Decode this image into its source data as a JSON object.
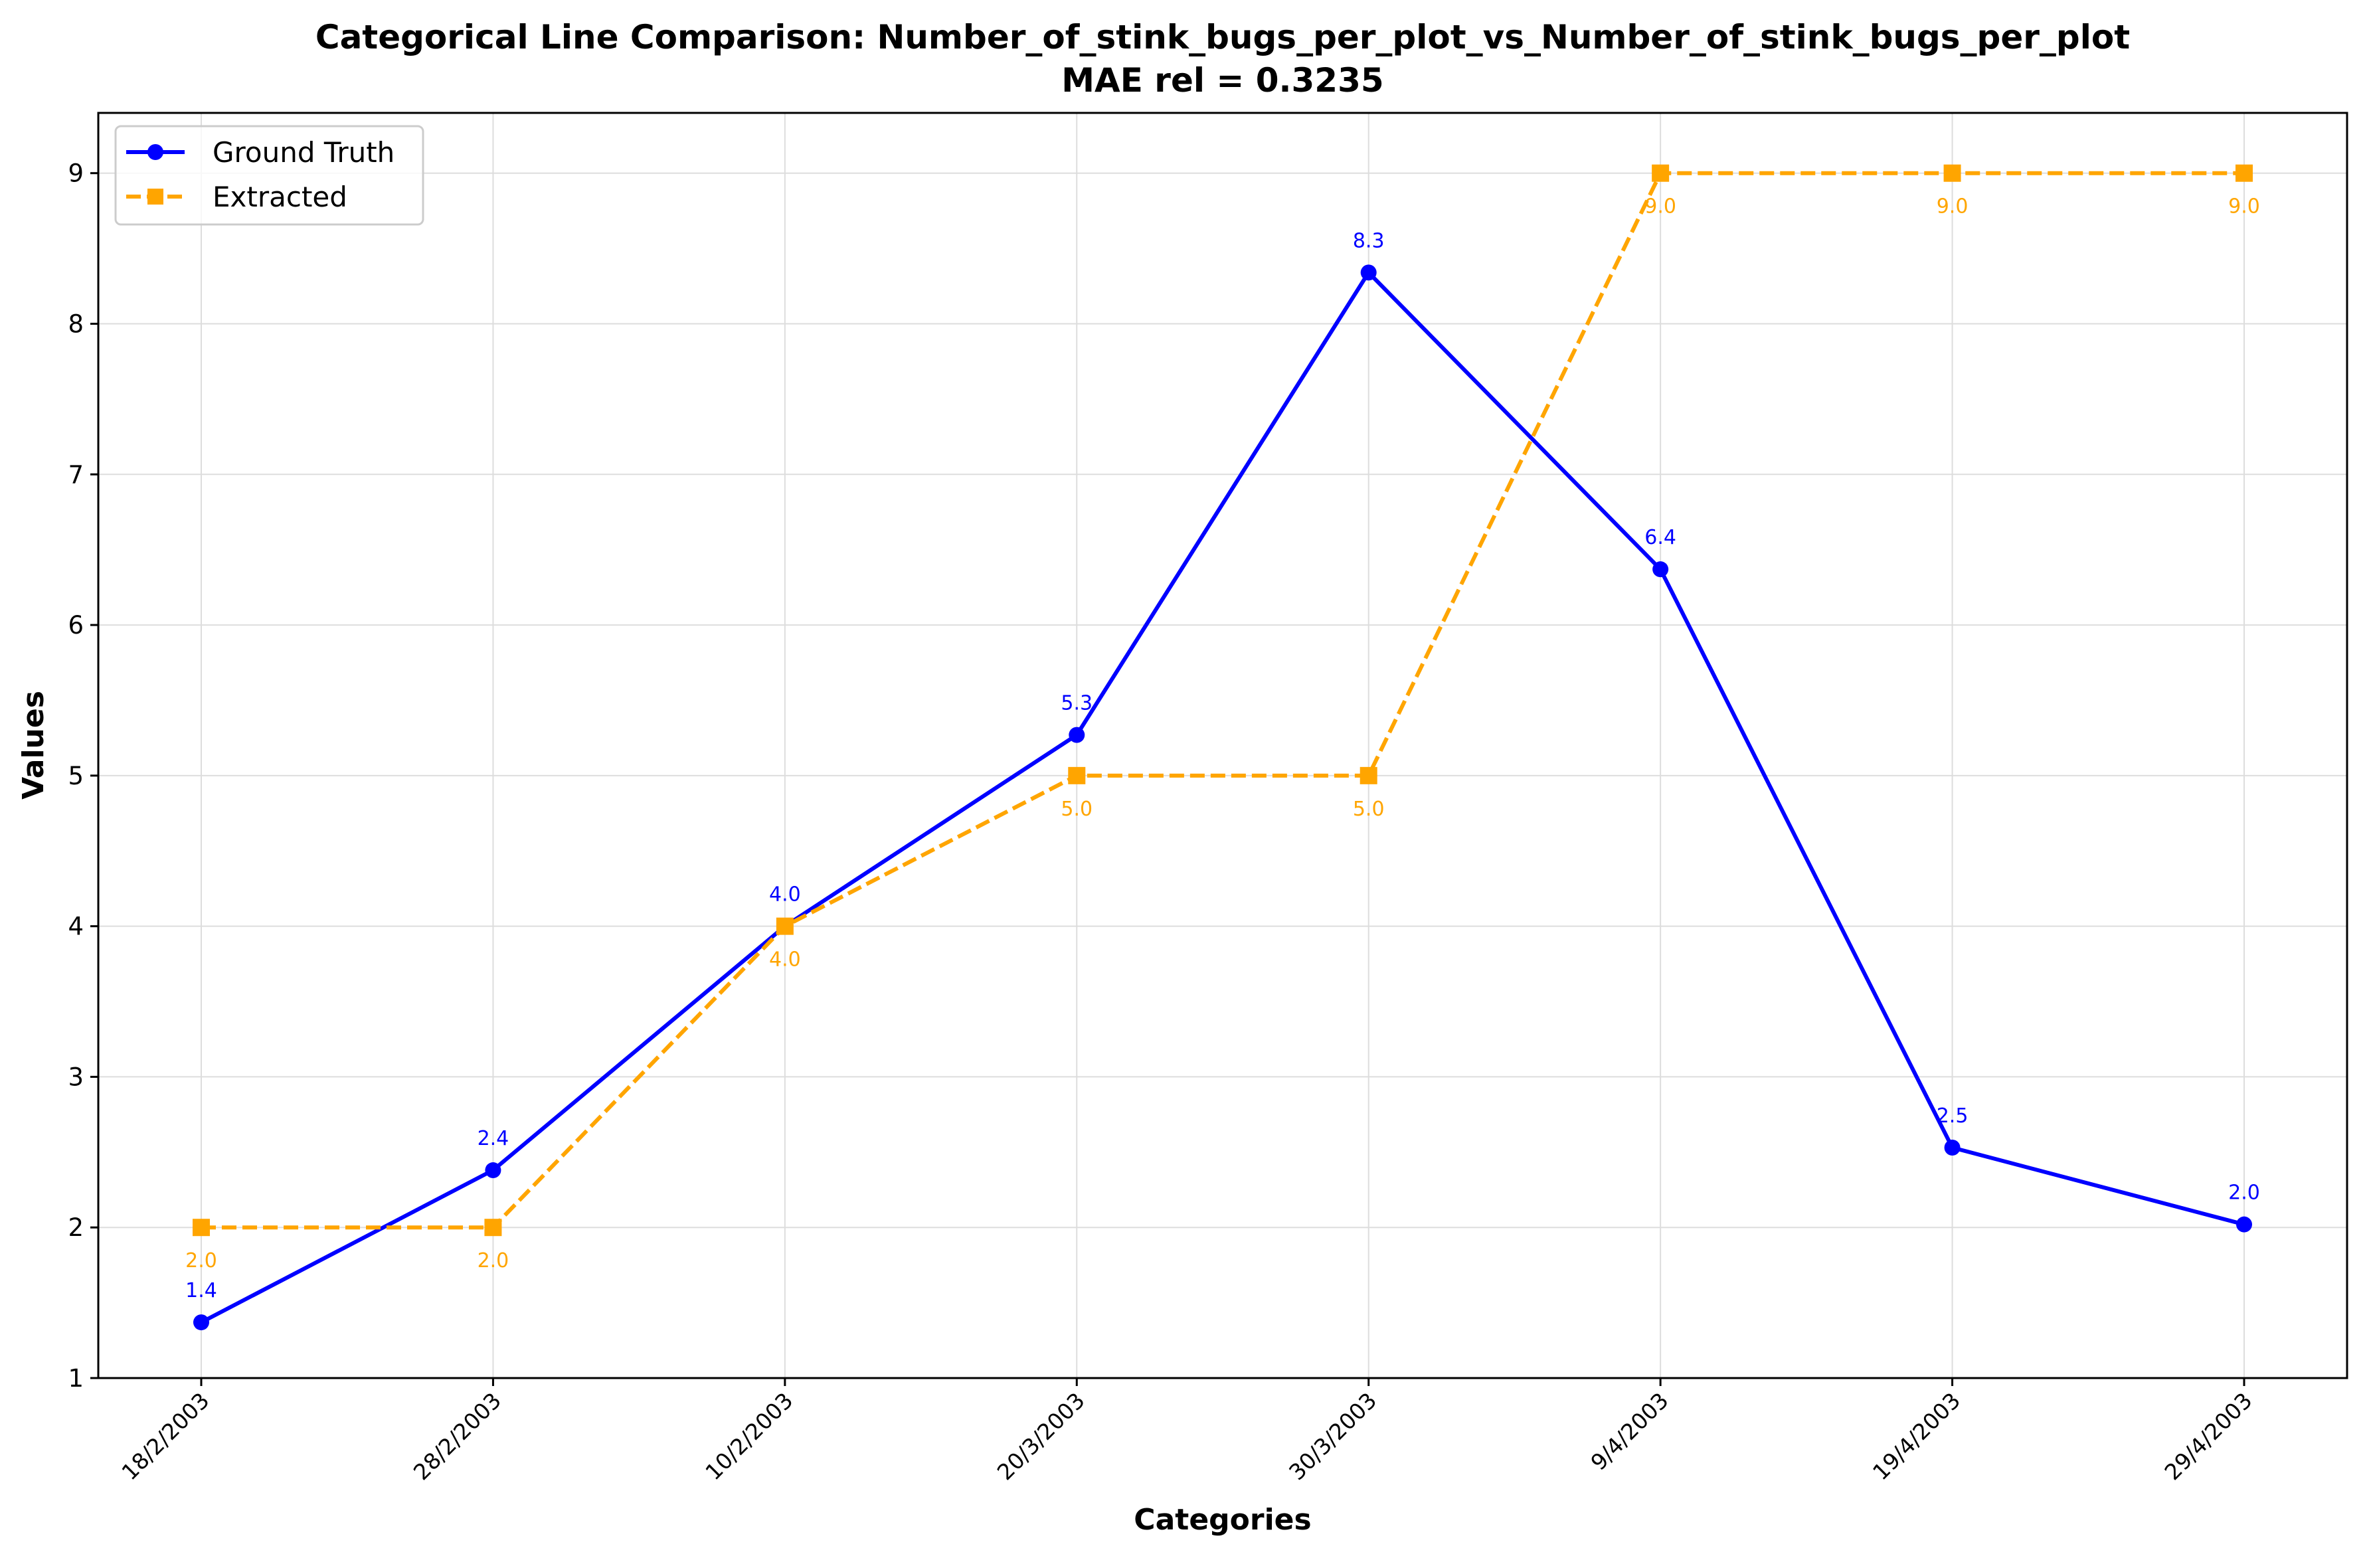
{
  "chart_data": {
    "type": "line",
    "title": "Categorical Line Comparison: Number_of_stink_bugs_per_plot_vs_Number_of_stink_bugs_per_plot",
    "subtitle": "MAE rel = 0.3235",
    "xlabel": "Categories",
    "ylabel": "Values",
    "categories": [
      "18/2/2003",
      "28/2/2003",
      "10/2/2003",
      "20/3/2003",
      "30/3/2003",
      "9/4/2003",
      "19/4/2003",
      "29/4/2003"
    ],
    "ylim": [
      1,
      9.4
    ],
    "yticks": [
      1,
      2,
      3,
      4,
      5,
      6,
      7,
      8,
      9
    ],
    "grid": true,
    "legend_position": "top-left",
    "series": [
      {
        "name": "Ground Truth",
        "values": [
          1.37,
          2.38,
          4.0,
          5.27,
          8.34,
          6.37,
          2.53,
          2.02
        ],
        "labels": [
          "1.4",
          "2.4",
          "4.0",
          "5.3",
          "8.3",
          "6.4",
          "2.5",
          "2.0"
        ],
        "color": "#0000ff",
        "line_style": "solid",
        "marker": "circle",
        "label_position": "above"
      },
      {
        "name": "Extracted",
        "values": [
          2.0,
          2.0,
          4.0,
          5.0,
          5.0,
          9.0,
          9.0,
          9.0
        ],
        "labels": [
          "2.0",
          "2.0",
          "4.0",
          "5.0",
          "5.0",
          "9.0",
          "9.0",
          "9.0"
        ],
        "color": "#ffa500",
        "line_style": "dashed",
        "marker": "square",
        "label_position": "below"
      }
    ]
  }
}
